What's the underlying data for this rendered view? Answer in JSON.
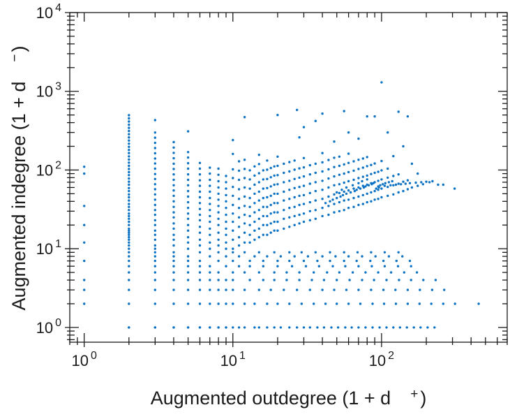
{
  "figure": {
    "background": "#ffffff",
    "frame_color": "#1a1a1a",
    "point_color": "#0b72c4",
    "point_radius": 1.7
  },
  "labels": {
    "x_base": "Augmented outdegree (1 + d",
    "x_sup": "+",
    "x_close": ")",
    "y_base": "Augmented indegree (1 + d",
    "y_sup": "−",
    "y_close": ")"
  },
  "axes": {
    "x": {
      "min": 0.8,
      "max": 700,
      "majors": [
        1,
        10,
        100
      ],
      "tick_labels": [
        {
          "base": "10",
          "exp": "0"
        },
        {
          "base": "10",
          "exp": "1"
        },
        {
          "base": "10",
          "exp": "2"
        }
      ]
    },
    "y": {
      "min": 0.65,
      "max": 10000,
      "majors": [
        1,
        10,
        100,
        1000,
        10000
      ],
      "tick_labels": [
        {
          "base": "10",
          "exp": "0"
        },
        {
          "base": "10",
          "exp": "1"
        },
        {
          "base": "10",
          "exp": "2"
        },
        {
          "base": "10",
          "exp": "3"
        },
        {
          "base": "10",
          "exp": "4"
        }
      ]
    }
  },
  "chart_data": {
    "type": "scatter",
    "title": "",
    "xlabel": "Augmented outdegree (1 + d⁺)",
    "ylabel": "Augmented indegree (1 + d⁻)",
    "xscale": "log",
    "yscale": "log",
    "xlim": [
      0.8,
      700
    ],
    "ylim": [
      0.65,
      10000
    ],
    "grid": false,
    "legend": false,
    "columns": {
      "1": [
        2,
        3,
        4,
        7,
        12,
        20,
        35,
        90,
        110
      ],
      "2": [
        1,
        2,
        3,
        4,
        5,
        6,
        7,
        8,
        9,
        10,
        11,
        12,
        13,
        14,
        15,
        16,
        17,
        18,
        20,
        22,
        24,
        26,
        28,
        31,
        34,
        37,
        41,
        45,
        49,
        54,
        59,
        65,
        71,
        78,
        86,
        94,
        103,
        113,
        124,
        136,
        149,
        164,
        180,
        197,
        216,
        237,
        260,
        285,
        313,
        343,
        376,
        413,
        453,
        497
      ],
      "3": [
        1,
        2,
        3,
        4,
        5,
        6,
        7,
        8,
        9,
        10,
        11,
        13,
        15,
        17,
        20,
        23,
        27,
        31,
        36,
        42,
        49,
        57,
        66,
        77,
        89,
        104,
        121,
        140,
        163,
        190,
        221,
        257,
        299,
        430
      ],
      "4": [
        1,
        2,
        3,
        4,
        5,
        6,
        7,
        8,
        9,
        11,
        13,
        15,
        18,
        21,
        25,
        29,
        34,
        40,
        47,
        55,
        64,
        75,
        88,
        103,
        120,
        141,
        165,
        193,
        226
      ],
      "5": [
        1,
        2,
        3,
        4,
        5,
        6,
        7,
        8,
        10,
        12,
        14,
        17,
        20,
        24,
        28,
        33,
        39,
        46,
        54,
        64,
        75,
        88,
        104,
        122,
        144,
        169
      ],
      "6": [
        1,
        2,
        3,
        4,
        5,
        6,
        7,
        9,
        11,
        13,
        16,
        19,
        23,
        27,
        32,
        38,
        45,
        53,
        63,
        74,
        88,
        104,
        123
      ],
      "7": [
        1,
        2,
        3,
        4,
        5,
        6,
        8,
        10,
        12,
        15,
        18,
        22,
        26,
        31,
        37,
        44,
        53,
        63,
        75,
        90,
        107
      ],
      "8": [
        1,
        2,
        3,
        4,
        5,
        7,
        9,
        11,
        13,
        16,
        20,
        24,
        29,
        35,
        42,
        50,
        60,
        72,
        87,
        104
      ],
      "9": [
        1,
        2,
        3,
        4,
        6,
        8,
        10,
        12,
        15,
        18,
        22,
        27,
        33,
        40,
        48,
        58,
        70,
        84
      ]
    },
    "rows": {
      "1": [
        2,
        3,
        4,
        5,
        6,
        7,
        8,
        9,
        10,
        11,
        12,
        14,
        15,
        17,
        19,
        21,
        24,
        27,
        30,
        33,
        37,
        41,
        46,
        51,
        57,
        63,
        70,
        78,
        87,
        97,
        108,
        120,
        133,
        148,
        165,
        183,
        204,
        227
      ],
      "2": [
        10,
        12,
        14,
        17,
        20,
        24,
        29,
        35,
        42,
        50,
        60,
        72,
        87,
        104,
        125,
        150,
        180,
        216,
        260,
        312,
        450
      ],
      "3": [
        10,
        12,
        15,
        18,
        22,
        27,
        33,
        40,
        48,
        58,
        70,
        85,
        103,
        124,
        150,
        181,
        219,
        264
      ],
      "4": [
        10,
        13,
        16,
        19,
        23,
        28,
        34,
        41,
        50,
        61,
        74,
        89,
        108,
        131,
        158,
        191,
        231
      ],
      "5": [
        10,
        12,
        15,
        19,
        23,
        28,
        35,
        43,
        52,
        64,
        78,
        95,
        116,
        142,
        173
      ],
      "6": [
        11,
        13,
        16,
        20,
        25,
        31,
        38,
        47,
        57,
        70,
        86,
        105,
        129,
        158
      ],
      "7": [
        10,
        13,
        16,
        20,
        24,
        30,
        37,
        45,
        56,
        68,
        84,
        103,
        126,
        155
      ],
      "8": [
        11,
        14,
        17,
        21,
        26,
        32,
        40,
        49,
        60,
        74,
        91,
        112,
        138
      ],
      "9": [
        10,
        12,
        15,
        19,
        24,
        29,
        36,
        45,
        56,
        69,
        85,
        105,
        130
      ]
    },
    "scatter_points": [
      [
        10,
        10
      ],
      [
        10,
        13
      ],
      [
        10,
        17
      ],
      [
        10,
        22
      ],
      [
        10,
        28
      ],
      [
        10,
        36
      ],
      [
        10,
        47
      ],
      [
        10,
        61
      ],
      [
        10,
        79
      ],
      [
        10,
        102
      ],
      [
        10,
        160
      ],
      [
        10,
        240
      ],
      [
        11,
        11
      ],
      [
        11,
        14
      ],
      [
        11,
        19
      ],
      [
        11,
        25
      ],
      [
        11,
        33
      ],
      [
        11,
        43
      ],
      [
        11,
        57
      ],
      [
        11,
        75
      ],
      [
        11,
        98
      ],
      [
        11,
        129
      ],
      [
        12,
        12
      ],
      [
        12,
        16
      ],
      [
        12,
        21
      ],
      [
        12,
        27
      ],
      [
        12,
        35
      ],
      [
        12,
        46
      ],
      [
        12,
        60
      ],
      [
        12,
        79
      ],
      [
        12,
        103
      ],
      [
        12,
        135
      ],
      [
        12,
        470
      ],
      [
        13,
        12
      ],
      [
        13,
        15
      ],
      [
        13,
        20
      ],
      [
        13,
        26
      ],
      [
        13,
        34
      ],
      [
        13,
        44
      ],
      [
        13,
        58
      ],
      [
        13,
        76
      ],
      [
        13,
        99
      ],
      [
        14,
        13
      ],
      [
        14,
        17
      ],
      [
        14,
        22
      ],
      [
        14,
        29
      ],
      [
        14,
        38
      ],
      [
        14,
        50
      ],
      [
        14,
        65
      ],
      [
        14,
        85
      ],
      [
        14,
        111
      ],
      [
        15,
        14
      ],
      [
        15,
        18
      ],
      [
        15,
        24
      ],
      [
        15,
        31
      ],
      [
        15,
        41
      ],
      [
        15,
        53
      ],
      [
        15,
        70
      ],
      [
        15,
        91
      ],
      [
        15,
        119
      ],
      [
        15,
        156
      ],
      [
        16,
        15
      ],
      [
        16,
        20
      ],
      [
        16,
        26
      ],
      [
        16,
        34
      ],
      [
        16,
        44
      ],
      [
        16,
        58
      ],
      [
        16,
        76
      ],
      [
        16,
        99
      ],
      [
        17,
        15
      ],
      [
        17,
        20
      ],
      [
        17,
        26
      ],
      [
        17,
        34
      ],
      [
        17,
        45
      ],
      [
        17,
        59
      ],
      [
        17,
        77
      ],
      [
        17,
        101
      ],
      [
        17,
        132
      ],
      [
        18,
        16
      ],
      [
        18,
        21
      ],
      [
        18,
        28
      ],
      [
        18,
        36
      ],
      [
        18,
        47
      ],
      [
        18,
        62
      ],
      [
        18,
        81
      ],
      [
        18,
        106
      ],
      [
        19,
        17
      ],
      [
        19,
        22
      ],
      [
        19,
        29
      ],
      [
        19,
        38
      ],
      [
        19,
        50
      ],
      [
        19,
        65
      ],
      [
        19,
        85
      ],
      [
        19,
        111
      ],
      [
        20,
        17
      ],
      [
        20,
        22
      ],
      [
        20,
        29
      ],
      [
        20,
        38
      ],
      [
        20,
        50
      ],
      [
        20,
        66
      ],
      [
        20,
        86
      ],
      [
        20,
        113
      ],
      [
        20,
        148
      ],
      [
        20,
        500
      ],
      [
        22,
        18
      ],
      [
        22,
        24
      ],
      [
        22,
        31
      ],
      [
        22,
        41
      ],
      [
        22,
        53
      ],
      [
        22,
        70
      ],
      [
        22,
        92
      ],
      [
        22,
        120
      ],
      [
        24,
        19
      ],
      [
        24,
        25
      ],
      [
        24,
        33
      ],
      [
        24,
        43
      ],
      [
        24,
        56
      ],
      [
        24,
        73
      ],
      [
        24,
        96
      ],
      [
        24,
        126
      ],
      [
        26,
        20
      ],
      [
        26,
        26
      ],
      [
        26,
        34
      ],
      [
        26,
        45
      ],
      [
        26,
        59
      ],
      [
        26,
        77
      ],
      [
        26,
        101
      ],
      [
        26,
        132
      ],
      [
        27,
        580
      ],
      [
        28,
        21
      ],
      [
        28,
        27
      ],
      [
        28,
        36
      ],
      [
        28,
        47
      ],
      [
        28,
        61
      ],
      [
        28,
        80
      ],
      [
        28,
        105
      ],
      [
        28,
        260
      ],
      [
        30,
        22
      ],
      [
        30,
        28
      ],
      [
        30,
        37
      ],
      [
        30,
        48
      ],
      [
        30,
        63
      ],
      [
        30,
        83
      ],
      [
        30,
        108
      ],
      [
        30,
        142
      ],
      [
        30,
        350
      ],
      [
        33,
        23
      ],
      [
        33,
        30
      ],
      [
        33,
        39
      ],
      [
        33,
        51
      ],
      [
        33,
        67
      ],
      [
        33,
        88
      ],
      [
        33,
        115
      ],
      [
        36,
        24
      ],
      [
        36,
        31
      ],
      [
        36,
        41
      ],
      [
        36,
        54
      ],
      [
        36,
        70
      ],
      [
        36,
        92
      ],
      [
        36,
        120
      ],
      [
        36,
        420
      ],
      [
        40,
        26
      ],
      [
        40,
        33
      ],
      [
        40,
        43
      ],
      [
        40,
        56
      ],
      [
        40,
        73
      ],
      [
        40,
        96
      ],
      [
        40,
        125
      ],
      [
        40,
        164
      ],
      [
        40,
        520
      ],
      [
        44,
        27
      ],
      [
        44,
        35
      ],
      [
        44,
        46
      ],
      [
        44,
        60
      ],
      [
        44,
        78
      ],
      [
        44,
        102
      ],
      [
        44,
        134
      ],
      [
        48,
        29
      ],
      [
        48,
        37
      ],
      [
        48,
        49
      ],
      [
        48,
        64
      ],
      [
        48,
        83
      ],
      [
        48,
        109
      ],
      [
        48,
        143
      ],
      [
        48,
        230
      ],
      [
        52,
        30
      ],
      [
        52,
        39
      ],
      [
        52,
        51
      ],
      [
        52,
        66
      ],
      [
        52,
        87
      ],
      [
        52,
        113
      ],
      [
        52,
        148
      ],
      [
        56,
        31
      ],
      [
        56,
        41
      ],
      [
        56,
        53
      ],
      [
        56,
        69
      ],
      [
        56,
        90
      ],
      [
        56,
        118
      ],
      [
        56,
        560
      ],
      [
        60,
        33
      ],
      [
        60,
        42
      ],
      [
        60,
        55
      ],
      [
        60,
        72
      ],
      [
        60,
        94
      ],
      [
        60,
        123
      ],
      [
        60,
        161
      ],
      [
        60,
        300
      ],
      [
        65,
        34
      ],
      [
        65,
        44
      ],
      [
        65,
        58
      ],
      [
        65,
        75
      ],
      [
        65,
        98
      ],
      [
        65,
        129
      ],
      [
        70,
        36
      ],
      [
        70,
        46
      ],
      [
        70,
        60
      ],
      [
        70,
        79
      ],
      [
        70,
        103
      ],
      [
        70,
        135
      ],
      [
        70,
        250
      ],
      [
        75,
        37
      ],
      [
        75,
        48
      ],
      [
        75,
        63
      ],
      [
        75,
        82
      ],
      [
        75,
        107
      ],
      [
        75,
        140
      ],
      [
        80,
        39
      ],
      [
        80,
        50
      ],
      [
        80,
        65
      ],
      [
        80,
        85
      ],
      [
        80,
        112
      ],
      [
        80,
        146
      ],
      [
        80,
        480
      ],
      [
        85,
        40
      ],
      [
        85,
        52
      ],
      [
        85,
        68
      ],
      [
        85,
        89
      ],
      [
        85,
        116
      ],
      [
        90,
        42
      ],
      [
        90,
        54
      ],
      [
        90,
        70
      ],
      [
        90,
        92
      ],
      [
        90,
        121
      ],
      [
        90,
        480
      ],
      [
        95,
        43
      ],
      [
        95,
        56
      ],
      [
        95,
        73
      ],
      [
        95,
        95
      ],
      [
        100,
        45
      ],
      [
        100,
        58
      ],
      [
        100,
        76
      ],
      [
        100,
        99
      ],
      [
        100,
        130
      ],
      [
        100,
        1300
      ],
      [
        110,
        47
      ],
      [
        110,
        61
      ],
      [
        110,
        80
      ],
      [
        110,
        104
      ],
      [
        110,
        300
      ],
      [
        120,
        49
      ],
      [
        120,
        64
      ],
      [
        120,
        84
      ],
      [
        120,
        150
      ],
      [
        130,
        52
      ],
      [
        130,
        67
      ],
      [
        130,
        88
      ],
      [
        130,
        550
      ],
      [
        140,
        54
      ],
      [
        140,
        71
      ],
      [
        140,
        200
      ],
      [
        150,
        57
      ],
      [
        150,
        74
      ],
      [
        150,
        480
      ],
      [
        160,
        60
      ],
      [
        160,
        120
      ],
      [
        175,
        63
      ],
      [
        175,
        90
      ],
      [
        190,
        66
      ],
      [
        210,
        70
      ],
      [
        310,
        58
      ],
      [
        5,
        310
      ],
      [
        95,
        62
      ],
      [
        105,
        63
      ],
      [
        115,
        64
      ],
      [
        125,
        65
      ],
      [
        135,
        66
      ],
      [
        145,
        67
      ],
      [
        155,
        68
      ],
      [
        170,
        69
      ],
      [
        185,
        70
      ],
      [
        200,
        71
      ],
      [
        220,
        72
      ],
      [
        240,
        65
      ],
      [
        260,
        65
      ],
      [
        42,
        38
      ],
      [
        45,
        40
      ],
      [
        47,
        42
      ],
      [
        50,
        44
      ],
      [
        53,
        46
      ],
      [
        55,
        48
      ],
      [
        58,
        50
      ],
      [
        62,
        52
      ],
      [
        66,
        54
      ],
      [
        68,
        56
      ],
      [
        72,
        58
      ],
      [
        76,
        60
      ],
      [
        78,
        62
      ],
      [
        82,
        64
      ],
      [
        86,
        66
      ],
      [
        88,
        68
      ],
      [
        92,
        58
      ],
      [
        96,
        60
      ],
      [
        98,
        64
      ],
      [
        102,
        66
      ],
      [
        106,
        68
      ],
      [
        112,
        70
      ],
      [
        118,
        72
      ],
      [
        50,
        52
      ],
      [
        54,
        56
      ],
      [
        58,
        60
      ],
      [
        64,
        64
      ],
      [
        70,
        68
      ],
      [
        74,
        72
      ],
      [
        80,
        76
      ]
    ]
  }
}
